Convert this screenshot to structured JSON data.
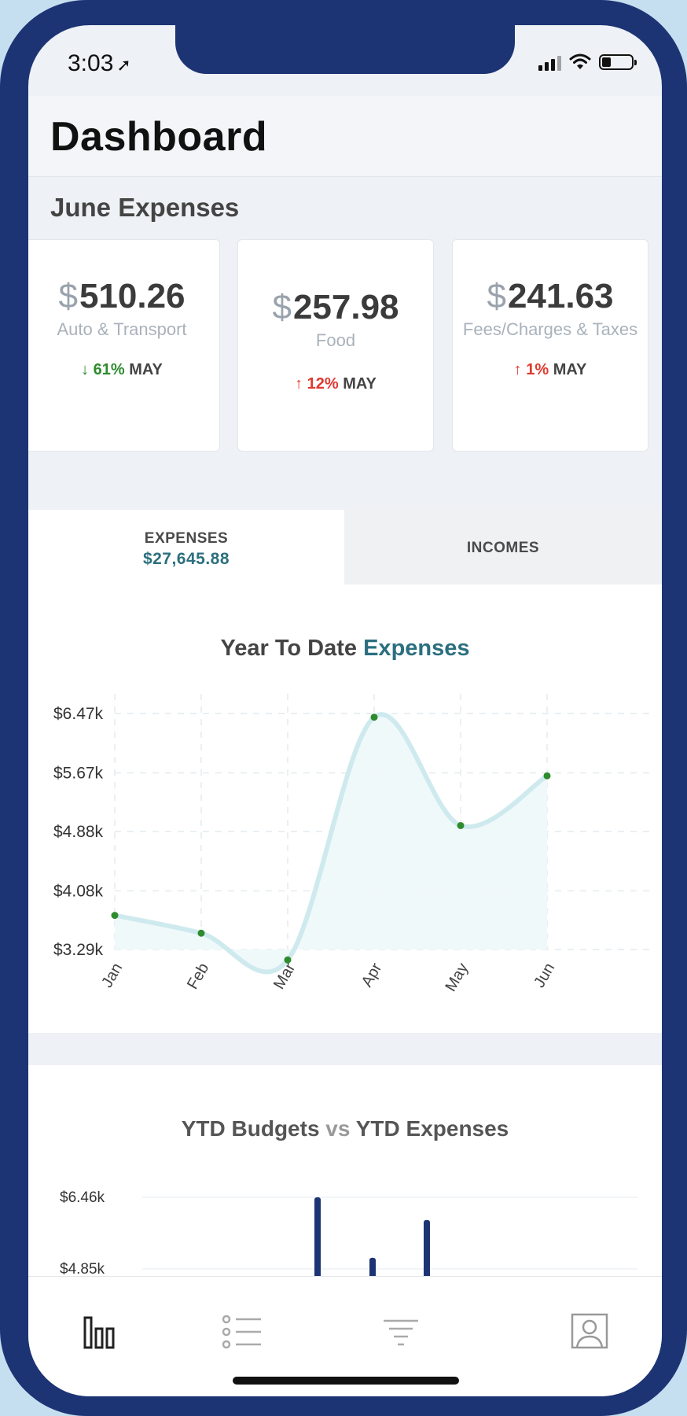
{
  "status": {
    "time": "3:03",
    "time_arrow": "➚",
    "battery_percent": 30
  },
  "header": {
    "title": "Dashboard"
  },
  "section": {
    "title": "June Expenses"
  },
  "cards": [
    {
      "currency": "$",
      "amount": "510.26",
      "category": "Auto & Transport",
      "trend_arrow": "↓",
      "trend_pct": "61%",
      "trend_month": "MAY",
      "trend_dir": "down"
    },
    {
      "currency": "$",
      "amount": "257.98",
      "category": "Food",
      "trend_arrow": "↑",
      "trend_pct": "12%",
      "trend_month": "MAY",
      "trend_dir": "up"
    },
    {
      "currency": "$",
      "amount": "241.63",
      "category": "Fees/Charges & Taxes",
      "trend_arrow": "↑",
      "trend_pct": "1%",
      "trend_month": "MAY",
      "trend_dir": "up"
    }
  ],
  "tabs": {
    "expenses_label": "EXPENSES",
    "expenses_value": "$27,645.88",
    "incomes_label": "INCOMES"
  },
  "chart1": {
    "title_part1": "Year To Date",
    "title_part2": "Expenses"
  },
  "chart2": {
    "title_part1": "YTD Budgets",
    "title_vs": "vs",
    "title_part2": "YTD Expenses"
  },
  "colors": {
    "accent": "#2b6f7f",
    "line": "#cfeaee",
    "point": "#2e8b2e",
    "bar": "#1d3474",
    "frame": "#1d3474"
  },
  "tabbar": {
    "items": [
      {
        "icon": "bar-chart-icon",
        "active": true
      },
      {
        "icon": "list-icon",
        "active": false
      },
      {
        "icon": "filter-icon",
        "active": false
      },
      {
        "icon": "profile-icon",
        "active": false
      }
    ]
  },
  "chart_data": [
    {
      "type": "area",
      "title": "Year To Date Expenses",
      "categories": [
        "Jan",
        "Feb",
        "Mar",
        "Apr",
        "May",
        "Jun"
      ],
      "values": [
        3750,
        3510,
        3150,
        6420,
        4960,
        5630
      ],
      "yticks": [
        "$3.29k",
        "$4.08k",
        "$4.88k",
        "$5.67k",
        "$6.47k"
      ],
      "ytick_values": [
        3290,
        4080,
        4880,
        5670,
        6470
      ],
      "ylim": [
        3290,
        6470
      ],
      "grid": true
    },
    {
      "type": "bar",
      "title": "YTD Budgets vs YTD Expenses",
      "yticks": [
        "$4.85k",
        "$6.46k"
      ],
      "ytick_values": [
        4850,
        6460
      ],
      "series": [
        {
          "values": [
            6460,
            5100,
            5950
          ]
        }
      ],
      "grid": true
    }
  ]
}
